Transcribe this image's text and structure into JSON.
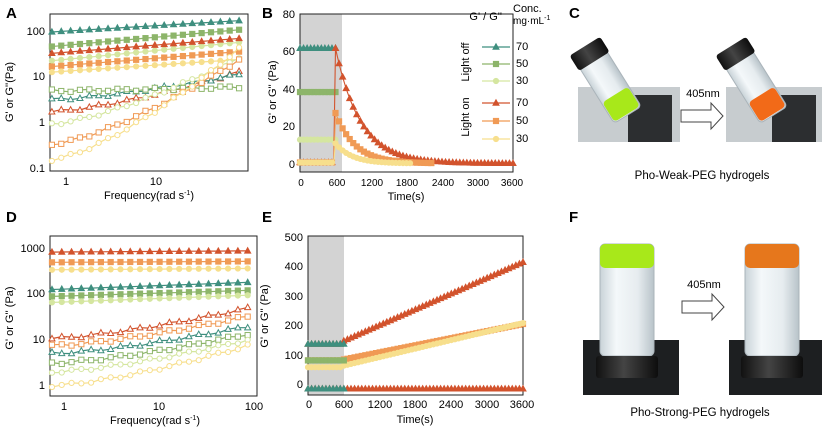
{
  "panels": {
    "A": {
      "letter": "A",
      "xlabel": "Frequency(rad s",
      "xlabel_sup": "-1",
      "ylabel": "G' or G''(Pa)",
      "xticks": [
        "1",
        "10"
      ],
      "yticks": [
        "100",
        "10",
        "1",
        "0.1"
      ]
    },
    "B": {
      "letter": "B",
      "xlabel": "Time(s)",
      "ylabel": "G' or G'' (Pa)",
      "xticks": [
        "0",
        "600",
        "1200",
        "1800",
        "2400",
        "3000",
        "3600"
      ],
      "yticks": [
        "0",
        "20",
        "40",
        "60",
        "80"
      ]
    },
    "C": {
      "letter": "C",
      "arrow_label": "405nm",
      "caption": "Pho-Weak-PEG hydrogels"
    },
    "D": {
      "letter": "D",
      "xlabel": "Frequency(rad s",
      "xlabel_sup": "-1",
      "ylabel": "G' or G'' (Pa)",
      "xticks": [
        "1",
        "10",
        "100"
      ],
      "yticks": [
        "1000",
        "100",
        "10",
        "1"
      ]
    },
    "E": {
      "letter": "E",
      "xlabel": "Time(s)",
      "ylabel": "G' or G'' (Pa)",
      "xticks": [
        "0",
        "600",
        "1200",
        "1800",
        "2400",
        "3000",
        "3600"
      ],
      "yticks": [
        "0",
        "100",
        "200",
        "300",
        "400",
        "500"
      ]
    },
    "F": {
      "letter": "F",
      "arrow_label": "405nm",
      "caption": "Pho-Strong-PEG hydrogels"
    }
  },
  "legend": {
    "header": "G' / G''",
    "conc": "Conc.",
    "conc_unit": "mg·mL",
    "conc_sup": "-1",
    "group_off": "Light off",
    "group_on": "Light on",
    "entries": [
      {
        "label": "70",
        "color": "#3f8f7f",
        "marker": "triangle"
      },
      {
        "label": "50",
        "color": "#8db56a",
        "marker": "square"
      },
      {
        "label": "30",
        "color": "#d5e6a0",
        "marker": "circle"
      },
      {
        "label": "70",
        "color": "#d2532d",
        "marker": "triangle"
      },
      {
        "label": "50",
        "color": "#f09a55",
        "marker": "square"
      },
      {
        "label": "30",
        "color": "#f7df8d",
        "marker": "circle"
      }
    ]
  },
  "chart_data": [
    {
      "panel": "A",
      "type": "line",
      "x_scale": "log",
      "y_scale": "log",
      "xlim": [
        0.6,
        100
      ],
      "ylim": [
        0.1,
        150
      ],
      "x": [
        0.63,
        0.8,
        1.0,
        1.26,
        1.58,
        2.0,
        2.51,
        3.16,
        3.98,
        5.01,
        6.31,
        7.94,
        10,
        12.6,
        15.8,
        20,
        25.1,
        31.6,
        39.8,
        50.1,
        63.1,
        79.4
      ],
      "series": [
        {
          "name": "Light off 70 G'",
          "color": "#3f8f7f",
          "marker": "triangle",
          "filled": true,
          "range": [
            65,
            110
          ]
        },
        {
          "name": "Light off 50 G'",
          "color": "#8db56a",
          "marker": "square",
          "filled": true,
          "range": [
            33,
            72
          ]
        },
        {
          "name": "Light off 30 G'",
          "color": "#d5e6a0",
          "marker": "circle",
          "filled": true,
          "range": [
            17,
            40
          ]
        },
        {
          "name": "Light on 70 G'",
          "color": "#d2532d",
          "marker": "triangle",
          "filled": true,
          "range": [
            24,
            48
          ]
        },
        {
          "name": "Light on 50 G'",
          "color": "#f09a55",
          "marker": "square",
          "filled": true,
          "range": [
            13,
            26
          ]
        },
        {
          "name": "Light on 30 G'",
          "color": "#f7df8d",
          "marker": "circle",
          "filled": true,
          "range": [
            10,
            18
          ]
        },
        {
          "name": "Light on 70 G''",
          "color": "#d2532d",
          "marker": "triangle",
          "filled": false,
          "range": [
            1.6,
            10
          ]
        },
        {
          "name": "Light off 70 G''",
          "color": "#3f8f7f",
          "marker": "triangle",
          "filled": false,
          "range": [
            2.8,
            9
          ]
        },
        {
          "name": "Light off 50 G''",
          "color": "#8db56a",
          "marker": "square",
          "filled": false,
          "range": [
            4.2,
            5.0
          ]
        },
        {
          "name": "Light off 30 G''",
          "color": "#d5e6a0",
          "marker": "circle",
          "filled": false,
          "range": [
            0.9,
            20
          ]
        },
        {
          "name": "Light on 50 G''",
          "color": "#f09a55",
          "marker": "square",
          "filled": false,
          "range": [
            0.35,
            18
          ]
        },
        {
          "name": "Light on 30 G''",
          "color": "#f7df8d",
          "marker": "circle",
          "filled": false,
          "range": [
            0.17,
            30
          ]
        }
      ]
    },
    {
      "panel": "B",
      "type": "line",
      "xlim": [
        0,
        3600
      ],
      "ylim": [
        -3,
        80
      ],
      "shaded_region": [
        0,
        600
      ],
      "series": [
        {
          "name": "Light off 70",
          "color": "#3f8f7f",
          "marker": "triangle",
          "before": 62,
          "after_start": 62,
          "after_end": 62,
          "tau": 1,
          "end_time": 600
        },
        {
          "name": "Light off 50",
          "color": "#8db56a",
          "marker": "square",
          "before": 39,
          "after_start": 39,
          "after_end": 39,
          "tau": 1,
          "end_time": 600
        },
        {
          "name": "Light off 30",
          "color": "#d5e6a0",
          "marker": "circle",
          "before": 14,
          "after_start": 14,
          "after_end": 14,
          "tau": 1,
          "end_time": 600
        },
        {
          "name": "Light on 70",
          "color": "#d2532d",
          "marker": "triangle",
          "before": 2,
          "after_start": 62,
          "after_end": 1.5,
          "tau": 420,
          "end_time": 3600
        },
        {
          "name": "Light on 50",
          "color": "#f09a55",
          "marker": "square",
          "before": 2,
          "after_start": 28,
          "after_end": 1.5,
          "tau": 330,
          "end_time": 2250
        },
        {
          "name": "Light on 30",
          "color": "#f7df8d",
          "marker": "circle",
          "before": 2,
          "after_start": 12,
          "after_end": 1.5,
          "tau": 280,
          "end_time": 1900
        }
      ]
    },
    {
      "panel": "D",
      "type": "line",
      "x_scale": "log",
      "y_scale": "log",
      "xlim": [
        0.6,
        100
      ],
      "ylim": [
        1,
        1500
      ],
      "series": [
        {
          "name": "Light on 70 G'",
          "color": "#d2532d",
          "marker": "triangle",
          "filled": true,
          "range": [
            720,
            760
          ]
        },
        {
          "name": "Light on 50 G'",
          "color": "#f09a55",
          "marker": "square",
          "filled": true,
          "range": [
            450,
            470
          ]
        },
        {
          "name": "Light on 30 G'",
          "color": "#f7df8d",
          "marker": "circle",
          "filled": true,
          "range": [
            320,
            340
          ]
        },
        {
          "name": "Light off 70 G'",
          "color": "#3f8f7f",
          "marker": "triangle",
          "filled": true,
          "range": [
            130,
            180
          ]
        },
        {
          "name": "Light off 50 G'",
          "color": "#8db56a",
          "marker": "square",
          "filled": true,
          "range": [
            95,
            125
          ]
        },
        {
          "name": "Light off 30 G'",
          "color": "#d5e6a0",
          "marker": "circle",
          "filled": true,
          "range": [
            72,
            100
          ]
        },
        {
          "name": "Light on 70 G''",
          "color": "#d2532d",
          "marker": "triangle",
          "filled": false,
          "range": [
            14,
            55
          ]
        },
        {
          "name": "Light on 50 G''",
          "color": "#f09a55",
          "marker": "square",
          "filled": false,
          "range": [
            10,
            38
          ]
        },
        {
          "name": "Light off 70 G''",
          "color": "#3f8f7f",
          "marker": "triangle",
          "filled": false,
          "range": [
            7,
            24
          ]
        },
        {
          "name": "Light off 50 G''",
          "color": "#8db56a",
          "marker": "square",
          "filled": false,
          "range": [
            4.5,
            17
          ]
        },
        {
          "name": "Light off 30 G''",
          "color": "#d5e6a0",
          "marker": "circle",
          "filled": false,
          "range": [
            3,
            13
          ]
        },
        {
          "name": "Light on 30 G''",
          "color": "#f7df8d",
          "marker": "circle",
          "filled": false,
          "range": [
            1.6,
            10
          ]
        }
      ]
    },
    {
      "panel": "E",
      "type": "line",
      "xlim": [
        0,
        3600
      ],
      "ylim": [
        -15,
        500
      ],
      "shaded_region": [
        0,
        600
      ],
      "series": [
        {
          "name": "Light on 70 G'",
          "color": "#d2532d",
          "marker": "triangle",
          "before": 150,
          "after_start": 160,
          "after_end": 415,
          "end_time": 3600
        },
        {
          "name": "Light on 50 G'",
          "color": "#f09a55",
          "marker": "square",
          "before": 97,
          "after_start": 100,
          "after_end": 215,
          "end_time": 3600
        },
        {
          "name": "Light on 30 G'",
          "color": "#f7df8d",
          "marker": "circle",
          "before": 75,
          "after_start": 80,
          "after_end": 218,
          "end_time": 3600
        },
        {
          "name": "Light off 70 G'",
          "color": "#3f8f7f",
          "marker": "triangle",
          "before": 150,
          "after_start": 150,
          "after_end": 150,
          "end_time": 600
        },
        {
          "name": "Light off 50 G'",
          "color": "#8db56a",
          "marker": "square",
          "before": 97,
          "after_start": 97,
          "after_end": 97,
          "end_time": 600
        },
        {
          "name": "G'' (all)",
          "color": "#d2532d",
          "marker": "triangle",
          "before": 5,
          "after_start": 5,
          "after_end": 5,
          "end_time": 3600
        },
        {
          "name": "G'' light off",
          "color": "#3f8f7f",
          "marker": "triangle",
          "before": 5,
          "after_start": 5,
          "after_end": 5,
          "end_time": 600
        }
      ]
    }
  ]
}
